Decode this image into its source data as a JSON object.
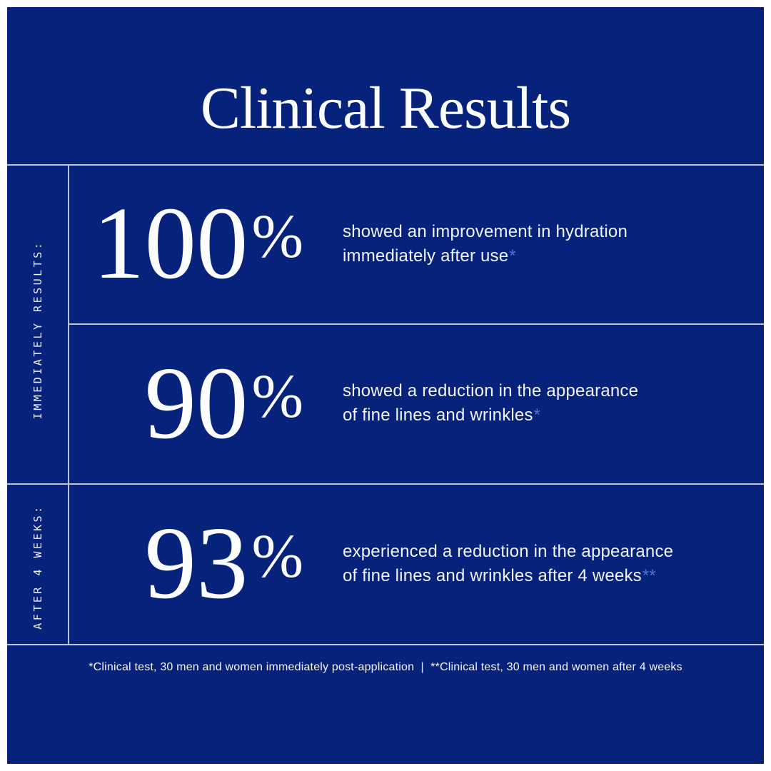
{
  "colors": {
    "panel_background": "#07227a",
    "divider": "#bcc4d8",
    "text_primary": "#fcfdff",
    "marker_accent": "#4f71d4",
    "outer_border": "#ffffff"
  },
  "header": {
    "title": "Clinical Results"
  },
  "sections": [
    {
      "label": "IMMEDIATELY RESULTS:"
    },
    {
      "label": "AFTER 4 WEEKS:"
    }
  ],
  "stats": [
    {
      "value": "100",
      "unit": "%",
      "description_line1": "showed an improvement in hydration",
      "description_line2": "immediately after use",
      "marker": "*"
    },
    {
      "value": "90",
      "unit": "%",
      "description_line1": "showed a reduction in the appearance",
      "description_line2": "of fine lines and wrinkles",
      "marker": "*"
    },
    {
      "value": "93",
      "unit": "%",
      "description_line1": "experienced a reduction in the appearance",
      "description_line2": "of fine lines and wrinkles after 4 weeks",
      "marker": "**"
    }
  ],
  "footer": {
    "footnote": "*Clinical test, 30 men and women immediately post-application  |  **Clinical test, 30 men and women after 4 weeks"
  }
}
